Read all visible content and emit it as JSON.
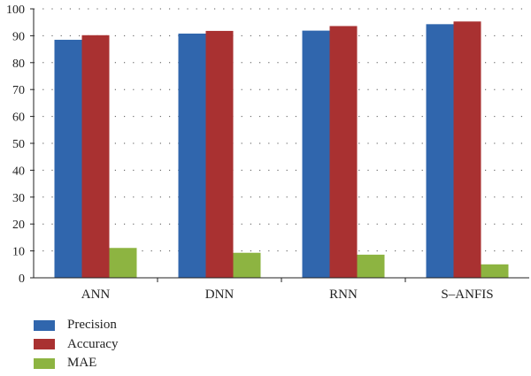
{
  "chart_data": {
    "type": "bar",
    "title": "",
    "xlabel": "",
    "ylabel": "",
    "ylim": [
      0,
      100
    ],
    "yticks": [
      0,
      10,
      20,
      30,
      40,
      50,
      60,
      70,
      80,
      90,
      100
    ],
    "grid": "dotted horizontal",
    "legend_position": "bottom-left",
    "categories": [
      "ANN",
      "DNN",
      "RNN",
      "S–ANFIS"
    ],
    "series": [
      {
        "name": "Precision",
        "color": "#3066ad",
        "values": [
          88.5,
          90.8,
          91.9,
          94.3
        ]
      },
      {
        "name": "Accuracy",
        "color": "#a93131",
        "values": [
          90.2,
          91.8,
          93.6,
          95.3
        ]
      },
      {
        "name": "MAE",
        "color": "#8db441",
        "values": [
          11.1,
          9.3,
          8.6,
          5.0
        ]
      }
    ]
  }
}
